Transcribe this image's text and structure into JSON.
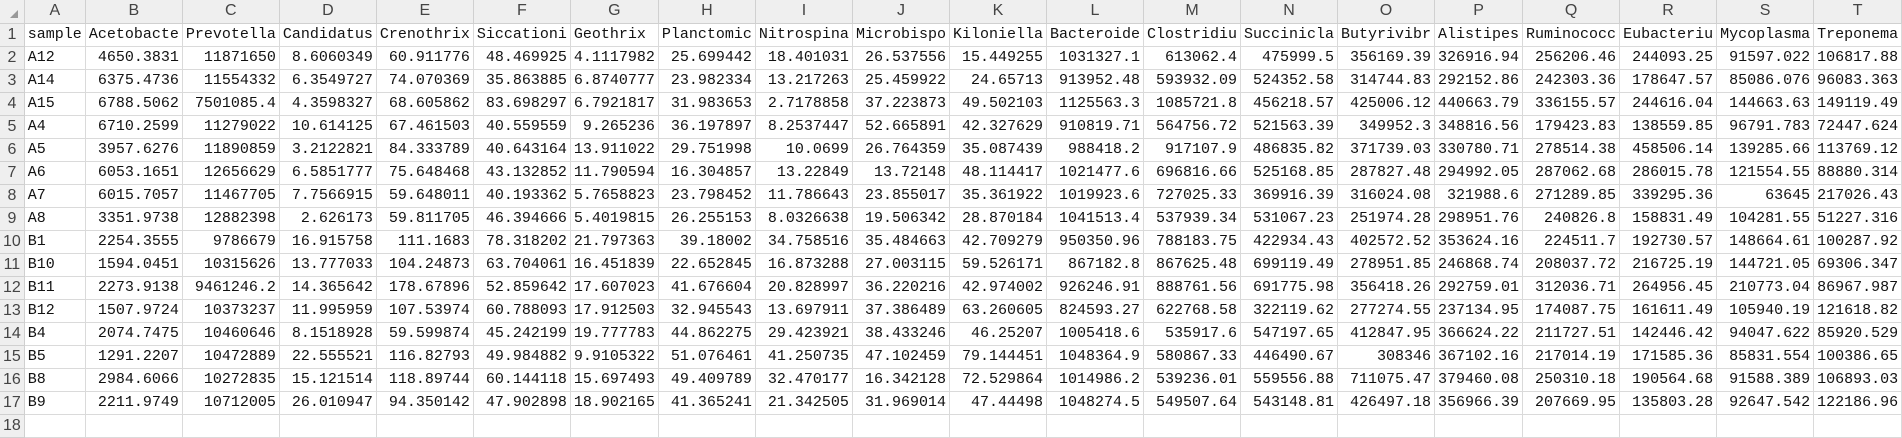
{
  "column_letters": [
    "A",
    "B",
    "C",
    "D",
    "E",
    "F",
    "G",
    "H",
    "I",
    "J",
    "K",
    "L",
    "M",
    "N",
    "O",
    "P",
    "Q",
    "R",
    "S",
    "T"
  ],
  "header_row": [
    "sample",
    "Acetobacte",
    "Prevotella",
    "Candidatus",
    "Crenothrix",
    "Siccationi",
    "Geothrix",
    "Planctomic",
    "Nitrospina",
    "Microbispo",
    "Kiloniella",
    "Bacteroide",
    "Clostridiu",
    "Succinicla",
    "Butyrivibr",
    "Alistipes",
    "Ruminococc",
    "Eubacteriu",
    "Mycoplasma",
    "Treponema"
  ],
  "rows": [
    [
      "A12",
      "4650.3831",
      "11871650",
      "8.6060349",
      "60.911776",
      "48.469925",
      "4.1117982",
      "25.699442",
      "18.401031",
      "26.537556",
      "15.449255",
      "1031327.1",
      "613062.4",
      "475999.5",
      "356169.39",
      "326916.94",
      "256206.46",
      "244093.25",
      "91597.022",
      "106817.88"
    ],
    [
      "A14",
      "6375.4736",
      "11554332",
      "6.3549727",
      "74.070369",
      "35.863885",
      "6.8740777",
      "23.982334",
      "13.217263",
      "25.459922",
      "24.65713",
      "913952.48",
      "593932.09",
      "524352.58",
      "314744.83",
      "292152.86",
      "242303.36",
      "178647.57",
      "85086.076",
      "96083.363"
    ],
    [
      "A15",
      "6788.5062",
      "7501085.4",
      "4.3598327",
      "68.605862",
      "83.698297",
      "6.7921817",
      "31.983653",
      "2.7178858",
      "37.223873",
      "49.502103",
      "1125563.3",
      "1085721.8",
      "456218.57",
      "425006.12",
      "440663.79",
      "336155.57",
      "244616.04",
      "144663.63",
      "149119.49"
    ],
    [
      "A4",
      "6710.2599",
      "11279022",
      "10.614125",
      "67.461503",
      "40.559559",
      "9.265236",
      "36.197897",
      "8.2537447",
      "52.665891",
      "42.327629",
      "910819.71",
      "564756.72",
      "521563.39",
      "349952.3",
      "348816.56",
      "179423.83",
      "138559.85",
      "96791.783",
      "72447.624"
    ],
    [
      "A5",
      "3957.6276",
      "11890859",
      "3.2122821",
      "84.333789",
      "40.643164",
      "13.911022",
      "29.751998",
      "10.0699",
      "26.764359",
      "35.087439",
      "988418.2",
      "917107.9",
      "486835.82",
      "371739.03",
      "330780.71",
      "278514.38",
      "458506.14",
      "139285.66",
      "113769.12"
    ],
    [
      "A6",
      "6053.1651",
      "12656629",
      "6.5851777",
      "75.648468",
      "43.132852",
      "11.790594",
      "16.304857",
      "13.22849",
      "13.72148",
      "48.114417",
      "1021477.6",
      "696816.66",
      "525168.85",
      "287827.48",
      "294992.05",
      "287062.68",
      "286015.78",
      "121554.55",
      "88880.314"
    ],
    [
      "A7",
      "6015.7057",
      "11467705",
      "7.7566915",
      "59.648011",
      "40.193362",
      "5.7658823",
      "23.798452",
      "11.786643",
      "23.855017",
      "35.361922",
      "1019923.6",
      "727025.33",
      "369916.39",
      "316024.08",
      "321988.6",
      "271289.85",
      "339295.36",
      "63645",
      "217026.43"
    ],
    [
      "A8",
      "3351.9738",
      "12882398",
      "2.626173",
      "59.811705",
      "46.394666",
      "5.4019815",
      "26.255153",
      "8.0326638",
      "19.506342",
      "28.870184",
      "1041513.4",
      "537939.34",
      "531067.23",
      "251974.28",
      "298951.76",
      "240826.8",
      "158831.49",
      "104281.55",
      "51227.316"
    ],
    [
      "B1",
      "2254.3555",
      "9786679",
      "16.915758",
      "111.1683",
      "78.318202",
      "21.797363",
      "39.18002",
      "34.758516",
      "35.484663",
      "42.709279",
      "950350.96",
      "788183.75",
      "422934.43",
      "402572.52",
      "353624.16",
      "224511.7",
      "192730.57",
      "148664.61",
      "100287.92"
    ],
    [
      "B10",
      "1594.0451",
      "10315626",
      "13.777033",
      "104.24873",
      "63.704061",
      "16.451839",
      "22.652845",
      "16.873288",
      "27.003115",
      "59.526171",
      "867182.8",
      "867625.48",
      "699119.49",
      "278951.85",
      "246868.74",
      "208037.72",
      "216725.19",
      "144721.05",
      "69306.347"
    ],
    [
      "B11",
      "2273.9138",
      "9461246.2",
      "14.365642",
      "178.67896",
      "52.859642",
      "17.607023",
      "41.676604",
      "20.828997",
      "36.220216",
      "42.974002",
      "926246.91",
      "888761.56",
      "691775.98",
      "356418.26",
      "292759.01",
      "312036.71",
      "264956.45",
      "210773.04",
      "86967.987"
    ],
    [
      "B12",
      "1507.9724",
      "10373237",
      "11.995959",
      "107.53974",
      "60.788093",
      "17.912503",
      "32.945543",
      "13.697911",
      "37.386489",
      "63.260605",
      "824593.27",
      "622768.58",
      "322119.62",
      "277274.55",
      "237134.95",
      "174087.75",
      "161611.49",
      "105940.19",
      "121618.82"
    ],
    [
      "B4",
      "2074.7475",
      "10460646",
      "8.1518928",
      "59.599874",
      "45.242199",
      "19.777783",
      "44.862275",
      "29.423921",
      "38.433246",
      "46.25207",
      "1005418.6",
      "535917.6",
      "547197.65",
      "412847.95",
      "366624.22",
      "211727.51",
      "142446.42",
      "94047.622",
      "85920.529"
    ],
    [
      "B5",
      "1291.2207",
      "10472889",
      "22.555521",
      "116.82793",
      "49.984882",
      "9.9105322",
      "51.076461",
      "41.250735",
      "47.102459",
      "79.144451",
      "1048364.9",
      "580867.33",
      "446490.67",
      "308346",
      "367102.16",
      "217014.19",
      "171585.36",
      "85831.554",
      "100386.65"
    ],
    [
      "B8",
      "2984.6066",
      "10272835",
      "15.121514",
      "118.89744",
      "60.144118",
      "15.697493",
      "49.409789",
      "32.470177",
      "16.342128",
      "72.529864",
      "1014986.2",
      "539236.01",
      "559556.88",
      "711075.47",
      "379460.08",
      "250310.18",
      "190564.68",
      "91588.389",
      "106893.03"
    ],
    [
      "B9",
      "2211.9749",
      "10712005",
      "26.010947",
      "94.350142",
      "47.902898",
      "18.902165",
      "41.365241",
      "21.342505",
      "31.969014",
      "47.44498",
      "1048274.5",
      "549507.64",
      "543148.81",
      "426497.18",
      "356966.39",
      "207669.95",
      "135803.28",
      "92647.542",
      "122186.96"
    ]
  ]
}
